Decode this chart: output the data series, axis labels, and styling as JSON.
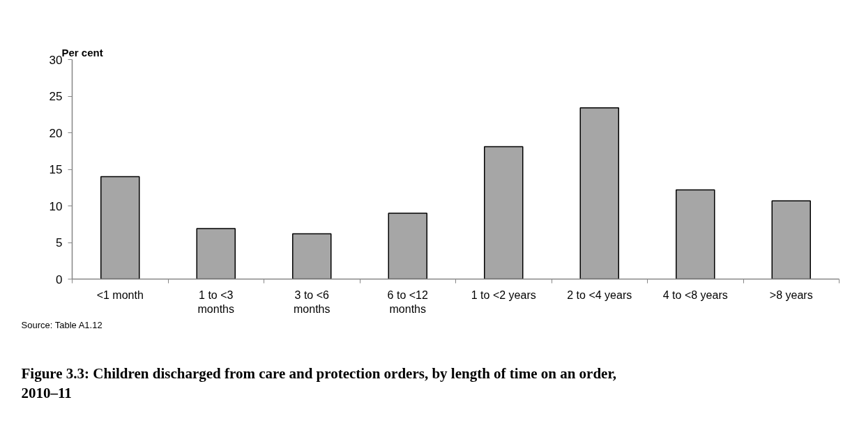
{
  "chart_data": {
    "type": "bar",
    "title": "Figure 3.3: Children discharged from care and protection orders, by length of time on an order, 2010–11",
    "ylabel": "Per cent",
    "annotations": [
      "Source: Table A1.12"
    ],
    "categories": [
      "<1 month",
      "1 to <3 months",
      "3 to <6 months",
      "6 to <12 months",
      "1 to <2 years",
      "2 to <4 years",
      "4 to <8 years",
      ">8 years"
    ],
    "values": [
      14.0,
      6.9,
      6.2,
      9.0,
      18.1,
      23.4,
      12.2,
      10.7
    ],
    "color": "#a6a6a6",
    "ylim": [
      0,
      30
    ],
    "yticks": [
      0,
      5,
      10,
      15,
      20,
      25,
      30
    ],
    "grid": false
  }
}
